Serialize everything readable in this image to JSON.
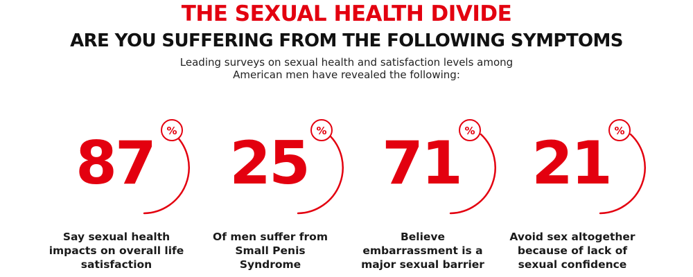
{
  "header": {
    "title": "THE SEXUAL HEALTH DIVIDE",
    "subtitle": "ARE YOU SUFFERING FROM THE FOLLOWING SYMPTOMS",
    "intro_line1": "Leading surveys on sexual health and satisfaction levels among",
    "intro_line2": "American men have revealed the following:"
  },
  "stats": [
    {
      "value": "87",
      "percent_symbol": "%",
      "caption_lines": [
        "Say sexual health",
        "impacts on overall life",
        "satisfaction"
      ]
    },
    {
      "value": "25",
      "percent_symbol": "%",
      "caption_lines": [
        "Of men suffer from",
        "Small Penis",
        "Syndrome"
      ]
    },
    {
      "value": "71",
      "percent_symbol": "%",
      "caption_lines": [
        "Believe",
        "embarrassment is a",
        "major sexual barrier"
      ]
    },
    {
      "value": "21",
      "percent_symbol": "%",
      "caption_lines": [
        "Avoid sex altogether",
        "because of lack of",
        "sexual confidence"
      ]
    }
  ],
  "colors": {
    "accent_red": "#e3000f",
    "text_dark": "#111111"
  }
}
